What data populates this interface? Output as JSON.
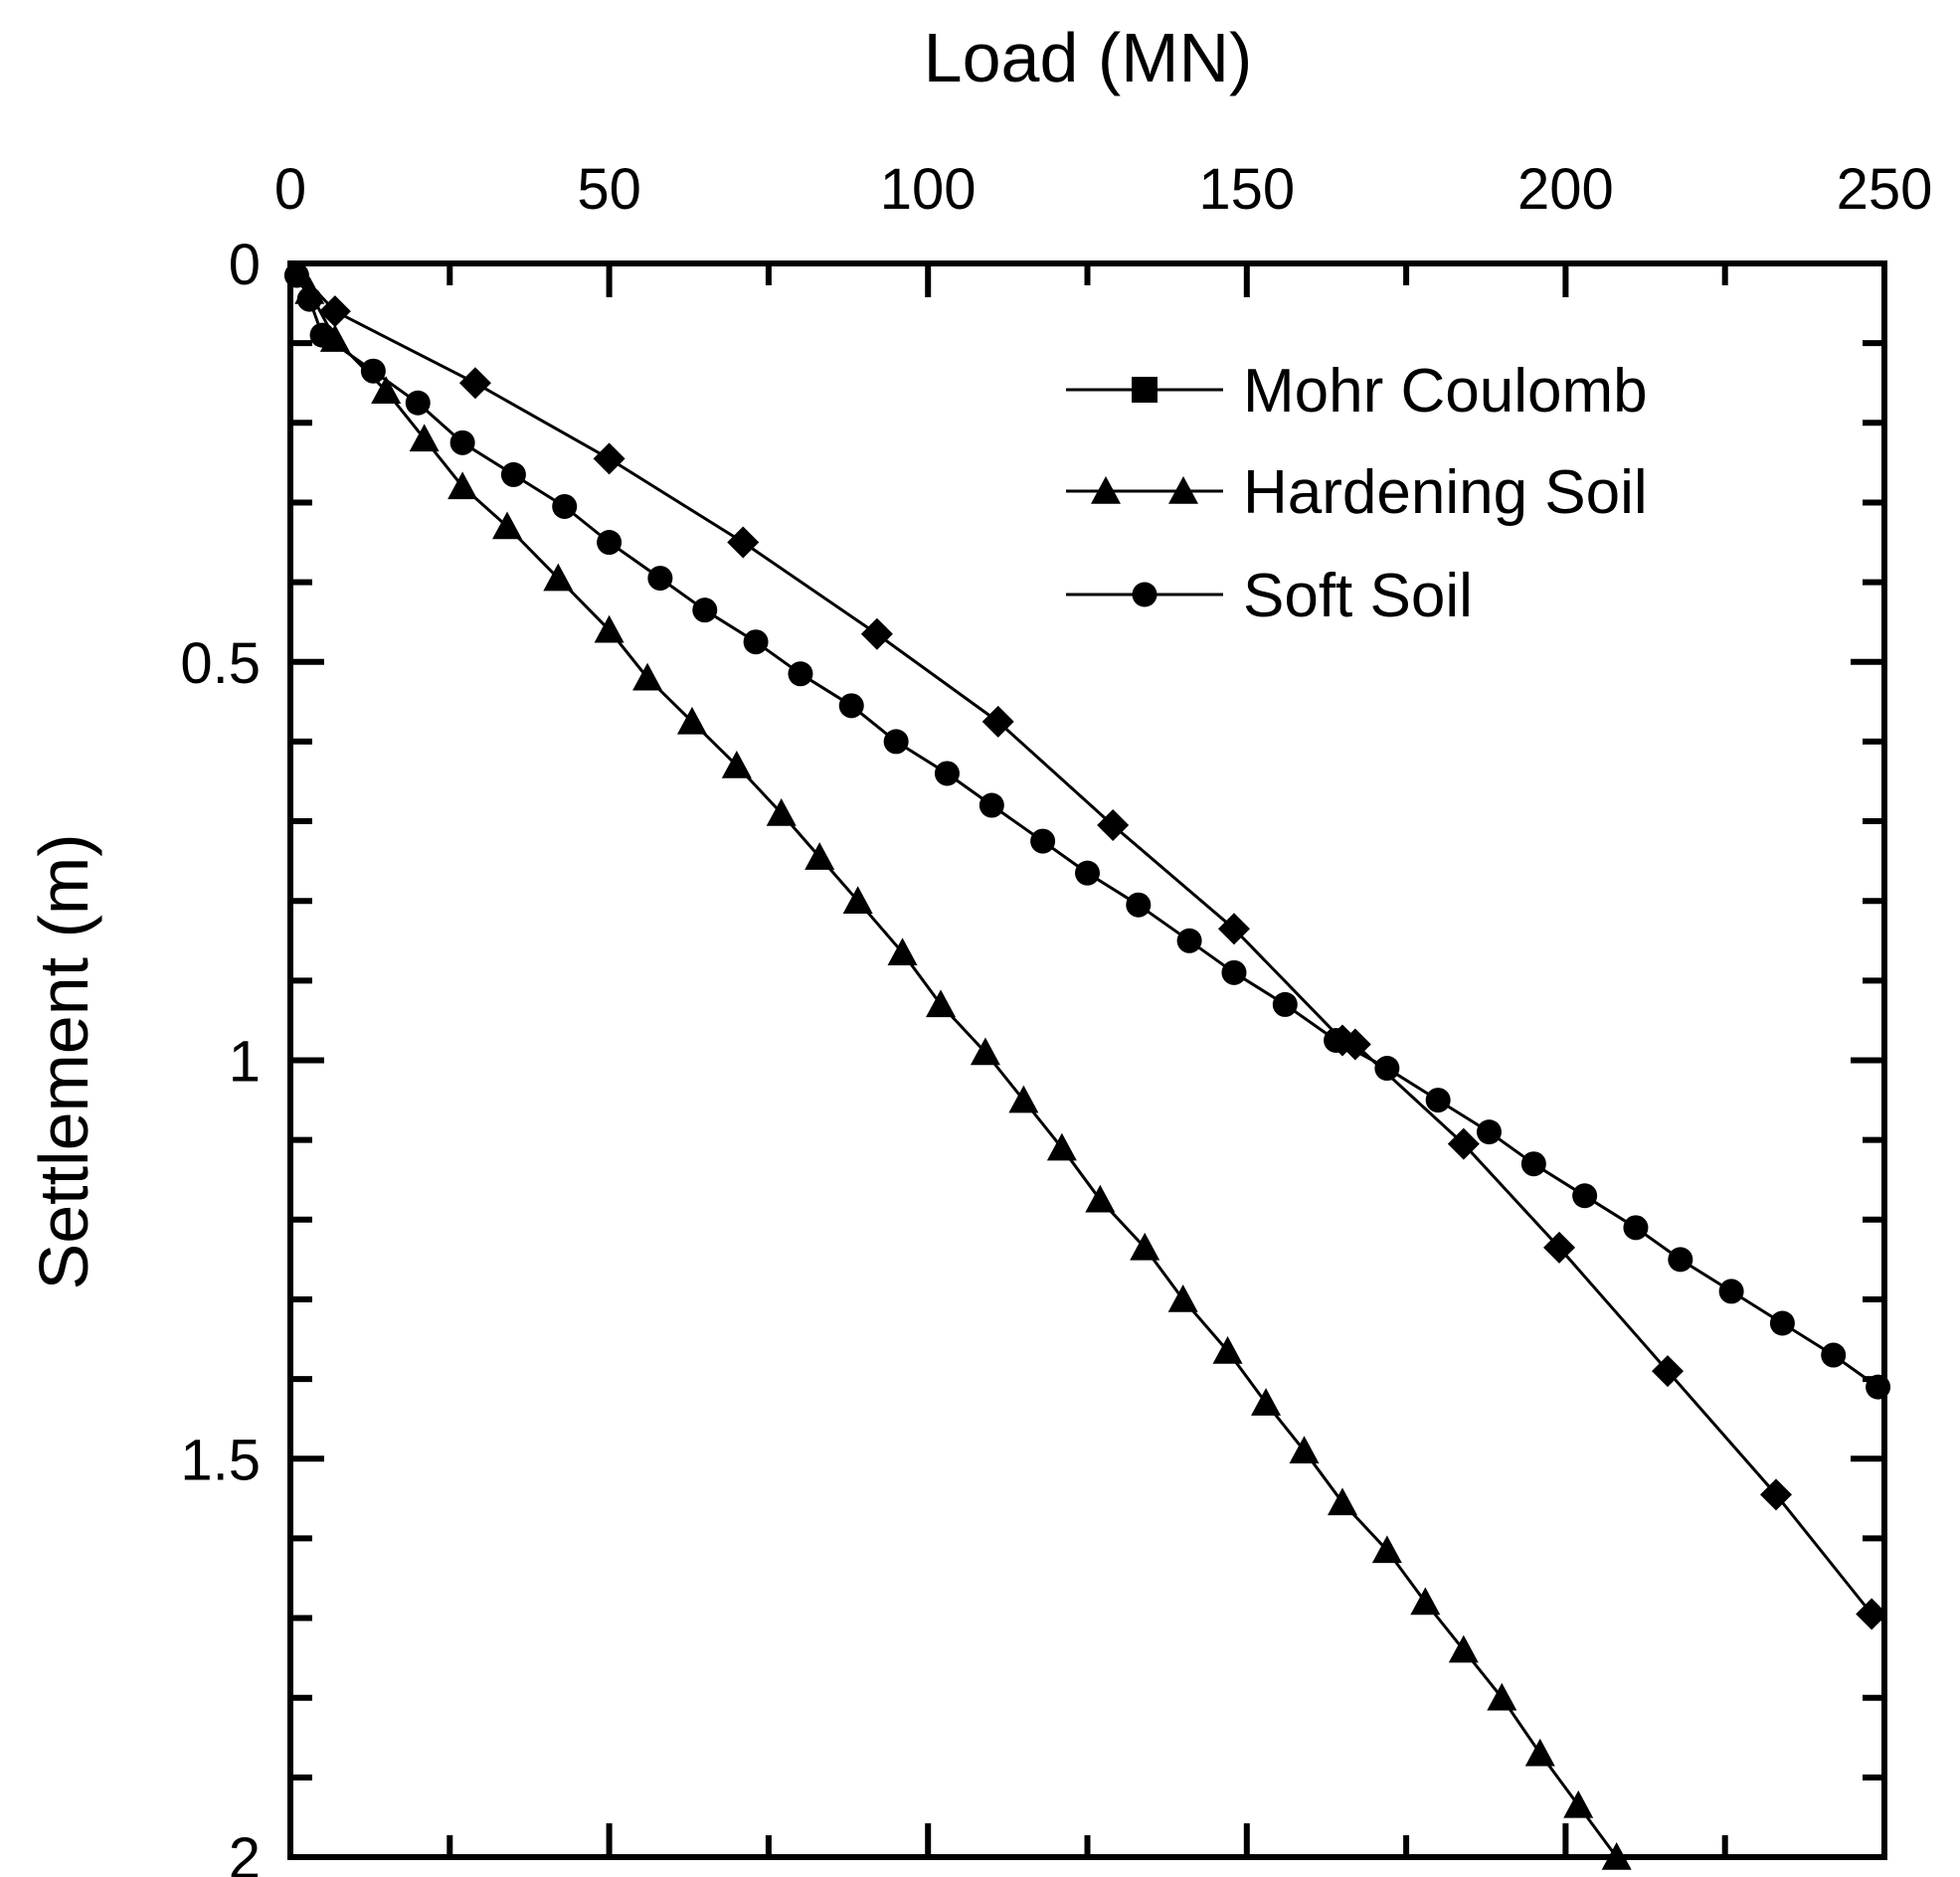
{
  "colors": {
    "ink": "#000000",
    "background": "#ffffff"
  },
  "chart_data": {
    "type": "line",
    "title": "",
    "xlabel": "Load (MN)",
    "ylabel": "Settlement (m)",
    "xlim": [
      0,
      250
    ],
    "ylim": [
      2,
      0
    ],
    "x_axis_position": "top",
    "y_axis_inverted": true,
    "xticks": [
      0,
      50,
      100,
      150,
      200,
      250
    ],
    "xtick_labels": [
      "0",
      "50",
      "100",
      "150",
      "200",
      "250"
    ],
    "yticks": [
      0,
      0.5,
      1,
      1.5,
      2
    ],
    "ytick_labels": [
      "0",
      "0.5",
      "1",
      "1.5",
      "2"
    ],
    "grid": false,
    "legend": "top-right",
    "series": [
      {
        "name": "Mohr Coulomb",
        "marker": "diamond",
        "legend_marker": "square",
        "points": [
          [
            0,
            0
          ],
          [
            7,
            0.06
          ],
          [
            29,
            0.15
          ],
          [
            50,
            0.245
          ],
          [
            71,
            0.35
          ],
          [
            92,
            0.465
          ],
          [
            111,
            0.575
          ],
          [
            129,
            0.705
          ],
          [
            148,
            0.835
          ],
          [
            165,
            0.975
          ],
          [
            167,
            0.98
          ],
          [
            184,
            1.105
          ],
          [
            199,
            1.235
          ],
          [
            216,
            1.39
          ],
          [
            233,
            1.545
          ],
          [
            248,
            1.695
          ]
        ]
      },
      {
        "name": "Hardening Soil",
        "marker": "triangle",
        "legend_marker": "triangle",
        "points": [
          [
            0,
            0
          ],
          [
            3,
            0.035
          ],
          [
            7,
            0.095
          ],
          [
            15,
            0.16
          ],
          [
            21,
            0.22
          ],
          [
            27,
            0.28
          ],
          [
            34,
            0.33
          ],
          [
            42,
            0.395
          ],
          [
            50,
            0.46
          ],
          [
            56,
            0.52
          ],
          [
            63,
            0.575
          ],
          [
            70,
            0.63
          ],
          [
            77,
            0.69
          ],
          [
            83,
            0.745
          ],
          [
            89,
            0.8
          ],
          [
            96,
            0.865
          ],
          [
            102,
            0.93
          ],
          [
            109,
            0.99
          ],
          [
            115,
            1.05
          ],
          [
            121,
            1.11
          ],
          [
            127,
            1.175
          ],
          [
            134,
            1.235
          ],
          [
            140,
            1.3
          ],
          [
            147,
            1.365
          ],
          [
            153,
            1.43
          ],
          [
            159,
            1.49
          ],
          [
            165,
            1.555
          ],
          [
            172,
            1.615
          ],
          [
            178,
            1.68
          ],
          [
            184,
            1.74
          ],
          [
            190,
            1.8
          ],
          [
            196,
            1.87
          ],
          [
            202,
            1.935
          ],
          [
            208,
            2.0
          ]
        ]
      },
      {
        "name": "Soft Soil",
        "marker": "circle",
        "legend_marker": "circle",
        "points": [
          [
            0,
            0
          ],
          [
            1,
            0.015
          ],
          [
            3,
            0.045
          ],
          [
            5,
            0.09
          ],
          [
            13,
            0.135
          ],
          [
            20,
            0.175
          ],
          [
            27,
            0.225
          ],
          [
            35,
            0.265
          ],
          [
            43,
            0.305
          ],
          [
            50,
            0.35
          ],
          [
            58,
            0.395
          ],
          [
            65,
            0.435
          ],
          [
            73,
            0.475
          ],
          [
            80,
            0.515
          ],
          [
            88,
            0.555
          ],
          [
            95,
            0.6
          ],
          [
            103,
            0.64
          ],
          [
            110,
            0.68
          ],
          [
            118,
            0.725
          ],
          [
            125,
            0.765
          ],
          [
            133,
            0.805
          ],
          [
            141,
            0.85
          ],
          [
            148,
            0.89
          ],
          [
            156,
            0.93
          ],
          [
            164,
            0.975
          ],
          [
            172,
            1.01
          ],
          [
            180,
            1.05
          ],
          [
            188,
            1.09
          ],
          [
            195,
            1.13
          ],
          [
            203,
            1.17
          ],
          [
            211,
            1.21
          ],
          [
            218,
            1.25
          ],
          [
            226,
            1.29
          ],
          [
            234,
            1.33
          ],
          [
            242,
            1.37
          ],
          [
            249,
            1.41
          ]
        ]
      }
    ]
  }
}
